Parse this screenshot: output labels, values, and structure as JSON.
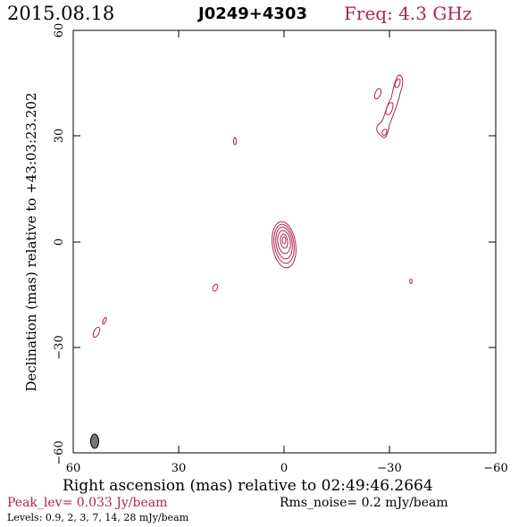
{
  "header": {
    "date": "2015.08.18",
    "source": "J0249+4303",
    "freq": "Freq: 4.3 GHz"
  },
  "axes": {
    "xlabel": "Right ascension (mas) relative to 02:49:46.2664",
    "ylabel": "Declination (mas) relative to +43:03:23.202",
    "x_ticks": [
      "60",
      "30",
      "0",
      "−30",
      "−60"
    ],
    "y_ticks": [
      "60",
      "30",
      "0",
      "−30",
      "−60"
    ],
    "xlim_mas": [
      60,
      -60
    ],
    "ylim_mas": [
      -60,
      60
    ]
  },
  "footer": {
    "peak": "Peak_lev=  0.033 Jy/beam",
    "rms": "Rms_noise=  0.2 mJy/beam",
    "levels": "Levels: 0.9,   2,   3,   7,  14,  28 mJy/beam"
  },
  "colors": {
    "contour": "#b0224f",
    "beam": "#777777"
  }
}
